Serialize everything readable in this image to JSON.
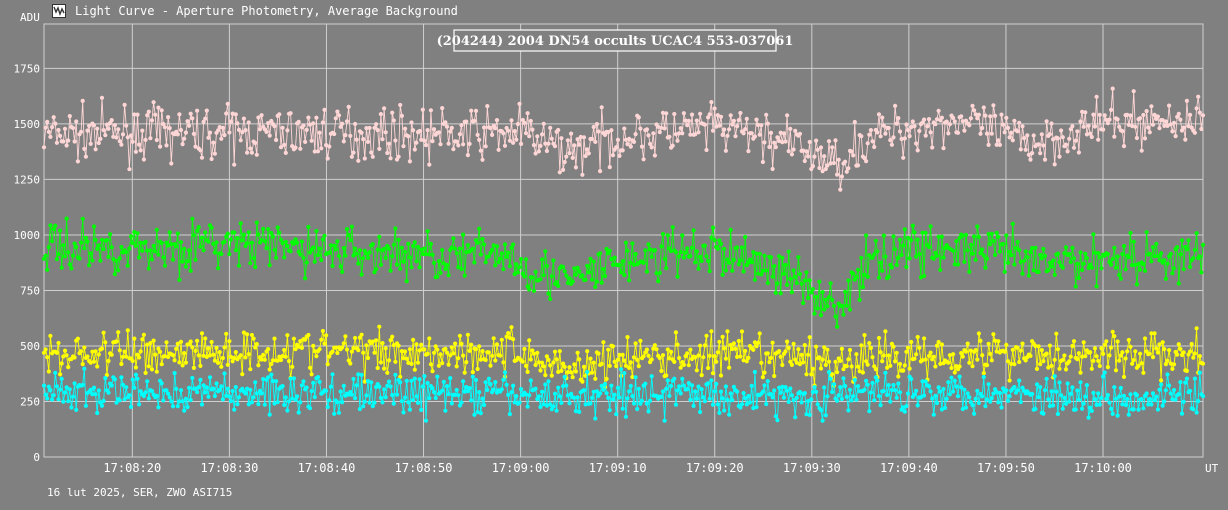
{
  "window": {
    "title": "Light Curve - Aperture Photometry, Average Background",
    "footer": "16 lut 2025, SER, ZWO ASI715"
  },
  "chart_data": {
    "type": "line",
    "title": "(204244) 2004 DN54 occults UCAC4 553-037061",
    "ylabel": "ADU",
    "xlabel": "UT",
    "ylim": [
      0,
      1950
    ],
    "y_ticks": [
      0,
      250,
      500,
      750,
      1000,
      1250,
      1500,
      1750
    ],
    "x_start": "17:08:10.9",
    "x_end": "17:10:10.3",
    "x_ticks": [
      "17:08:20",
      "17:08:30",
      "17:08:40",
      "17:08:50",
      "17:09:00",
      "17:09:10",
      "17:09:20",
      "17:09:30",
      "17:09:40",
      "17:09:50",
      "17:10:00"
    ],
    "grid": true,
    "background": "#808080",
    "series": [
      {
        "color": "#ffd6d6",
        "noise": 55,
        "outline_times": [
          "17:08:10.9",
          "17:08:20",
          "17:08:40",
          "17:08:55",
          "17:09:00",
          "17:09:03",
          "17:09:05",
          "17:09:10",
          "17:09:20",
          "17:09:25",
          "17:09:30",
          "17:09:32",
          "17:09:33",
          "17:09:36",
          "17:09:40",
          "17:09:45",
          "17:09:50",
          "17:09:53",
          "17:10:00",
          "17:10:10.3"
        ],
        "outline_values": [
          1450,
          1460,
          1460,
          1450,
          1470,
          1400,
          1380,
          1440,
          1480,
          1450,
          1370,
          1320,
          1340,
          1440,
          1480,
          1520,
          1440,
          1420,
          1500,
          1520
        ]
      },
      {
        "color": "#00ff00",
        "noise": 55,
        "outline_times": [
          "17:08:10.9",
          "17:08:20",
          "17:08:30",
          "17:08:40",
          "17:08:55",
          "17:08:58",
          "17:09:00",
          "17:09:03",
          "17:09:05",
          "17:09:10",
          "17:09:20",
          "17:09:25",
          "17:09:30",
          "17:09:32",
          "17:09:33",
          "17:09:36",
          "17:09:40",
          "17:09:45",
          "17:09:50",
          "17:09:53",
          "17:10:00",
          "17:10:10.3"
        ],
        "outline_values": [
          950,
          940,
          960,
          930,
          900,
          930,
          870,
          820,
          780,
          880,
          930,
          870,
          760,
          700,
          680,
          880,
          950,
          930,
          920,
          860,
          900,
          900
        ]
      },
      {
        "color": "#ffff00",
        "noise": 50,
        "outline_times": [
          "17:08:10.9",
          "17:08:20",
          "17:08:40",
          "17:09:00",
          "17:09:03",
          "17:09:05",
          "17:09:10",
          "17:09:20",
          "17:09:30",
          "17:09:33",
          "17:09:40",
          "17:09:50",
          "17:10:00",
          "17:10:10.3"
        ],
        "outline_values": [
          460,
          470,
          480,
          470,
          420,
          400,
          440,
          460,
          440,
          420,
          460,
          470,
          460,
          460
        ]
      },
      {
        "color": "#00ffff",
        "noise": 45,
        "outline_times": [
          "17:08:10.9",
          "17:08:20",
          "17:08:40",
          "17:09:00",
          "17:09:05",
          "17:09:10",
          "17:09:20",
          "17:09:30",
          "17:09:40",
          "17:09:50",
          "17:10:00",
          "17:10:10.3"
        ],
        "outline_values": [
          280,
          290,
          290,
          280,
          270,
          290,
          280,
          270,
          300,
          290,
          270,
          290
        ]
      }
    ]
  }
}
